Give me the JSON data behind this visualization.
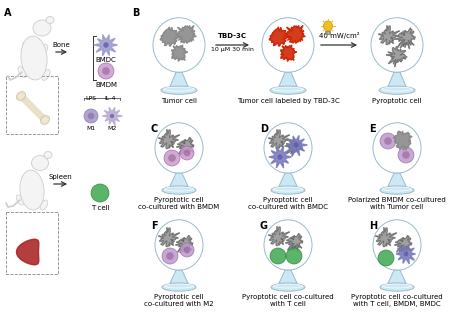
{
  "bg_color": "#ffffff",
  "panel_label_fontsize": 7,
  "label_fontsize": 5.0,
  "section_labels": {
    "C": "Pyroptotic cell\nco-cultured with BMDM",
    "D": "Pyroptotic cell\nco-cultured with BMDC",
    "E": "Polarized BMDM co-cultured\nwith Tumor cell",
    "F": "Pyroptotic cell\nco-cultured with M2",
    "G": "Pyroptotic cell co-cultured\nwith T cell",
    "H": "Pyroptotic cell co-cultured\nwith T cell, BMDM, BMDC"
  },
  "colors": {
    "tumor_cell": "#888888",
    "tumor_labeled": "#cc2200",
    "pyroptotic": "#888888",
    "bmdc_spiky": "#7777bb",
    "bmdm_round": "#bb88bb",
    "m1_round": "#9999bb",
    "m2_spiky": "#aaaacc",
    "t_cell": "#44aa55",
    "dish_fill": "#cce8f4",
    "dish_edge": "#99bbcc",
    "vessel_fill": "#cce8f4",
    "vessel_edge": "#99bbcc",
    "arrow_color": "#333333",
    "bone_fill": "#e8e0c8",
    "bone_stroke": "#c8b898"
  },
  "b_labels": [
    "Tumor cell",
    "Tumor cell labeled by TBD-3C",
    "Pyroptotic cell"
  ],
  "arrow_text1a": "TBD-3C",
  "arrow_text1b": "10 μM 30 min",
  "arrow_text2": "40 mW/cm²",
  "bone_text": "Bone",
  "spleen_text": "Spleen",
  "bmdc_text": "BMDC",
  "bmdm_text": "BMDM",
  "m1_text": "M1",
  "m2_text": "M2",
  "lps_text": "LPS",
  "il4_text": "IL-4",
  "tcell_text": "T cell"
}
